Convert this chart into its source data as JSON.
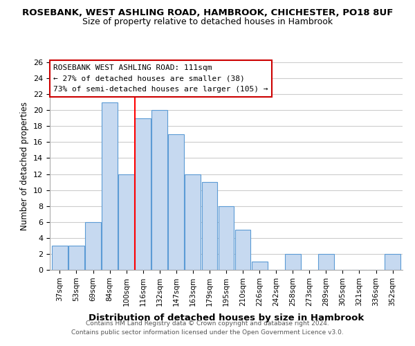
{
  "title": "ROSEBANK, WEST ASHLING ROAD, HAMBROOK, CHICHESTER, PO18 8UF",
  "subtitle": "Size of property relative to detached houses in Hambrook",
  "xlabel": "Distribution of detached houses by size in Hambrook",
  "ylabel": "Number of detached properties",
  "bar_color": "#c6d9f0",
  "bar_edge_color": "#5b9bd5",
  "categories": [
    "37sqm",
    "53sqm",
    "69sqm",
    "84sqm",
    "100sqm",
    "116sqm",
    "132sqm",
    "147sqm",
    "163sqm",
    "179sqm",
    "195sqm",
    "210sqm",
    "226sqm",
    "242sqm",
    "258sqm",
    "273sqm",
    "289sqm",
    "305sqm",
    "321sqm",
    "336sqm",
    "352sqm"
  ],
  "values": [
    3,
    3,
    6,
    21,
    12,
    19,
    20,
    17,
    12,
    11,
    8,
    5,
    1,
    0,
    2,
    0,
    2,
    0,
    0,
    0,
    2
  ],
  "redline_x": 4.5,
  "ylim": [
    0,
    26
  ],
  "yticks": [
    0,
    2,
    4,
    6,
    8,
    10,
    12,
    14,
    16,
    18,
    20,
    22,
    24,
    26
  ],
  "annotation_title": "ROSEBANK WEST ASHLING ROAD: 111sqm",
  "annotation_line1": "← 27% of detached houses are smaller (38)",
  "annotation_line2": "73% of semi-detached houses are larger (105) →",
  "footer1": "Contains HM Land Registry data © Crown copyright and database right 2024.",
  "footer2": "Contains public sector information licensed under the Open Government Licence v3.0.",
  "background_color": "#ffffff",
  "grid_color": "#cccccc",
  "ann_box_color": "#cc0000"
}
